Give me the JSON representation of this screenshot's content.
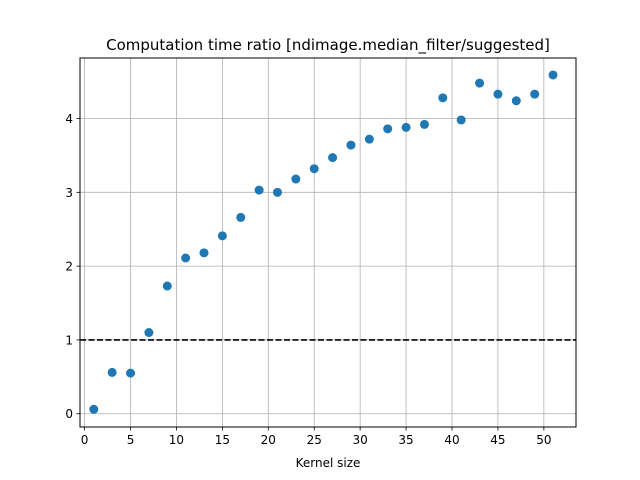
{
  "chart_data": {
    "type": "scatter",
    "title": "Computation time ratio [ndimage.median_filter/suggested]",
    "xlabel": "Kernel size",
    "ylabel": "",
    "xlim": [
      -0.5,
      53.5
    ],
    "ylim": [
      -0.18,
      4.82
    ],
    "xticks": [
      0,
      5,
      10,
      15,
      20,
      25,
      30,
      35,
      40,
      45,
      50
    ],
    "yticks": [
      0,
      1,
      2,
      3,
      4
    ],
    "grid": true,
    "reference_line": {
      "y": 1,
      "style": "dashed",
      "color": "#000000"
    },
    "marker_color": "#1f77b4",
    "series": [
      {
        "x": [
          1,
          3,
          5,
          7,
          9,
          11,
          13,
          15,
          17,
          19,
          21,
          23,
          25,
          27,
          29,
          31,
          33,
          35,
          37,
          39,
          41,
          43,
          45,
          47,
          49,
          51
        ],
        "y": [
          0.06,
          0.56,
          0.55,
          1.1,
          1.73,
          2.11,
          2.18,
          2.41,
          2.66,
          3.03,
          3.0,
          3.18,
          3.32,
          3.47,
          3.64,
          3.72,
          3.86,
          3.88,
          3.92,
          4.28,
          3.98,
          4.48,
          4.33,
          4.24,
          4.33,
          4.59
        ]
      }
    ]
  }
}
